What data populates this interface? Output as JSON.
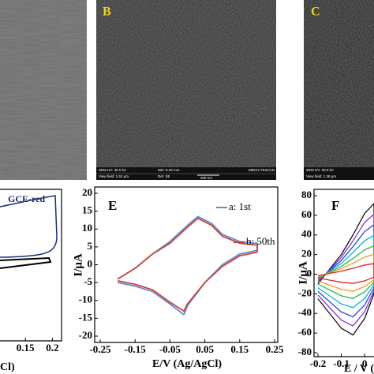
{
  "panels": {
    "b": {
      "label": "B",
      "info": [
        "SEM HV: 30.0 kV",
        "WD: 8.20 mm",
        "MIRA3 TESCAN",
        "View field: 1.52 µm",
        "Det: SE",
        "200 nm"
      ]
    },
    "c": {
      "label": "C",
      "info": [
        "SEM HV: 30.0 kV",
        "View field: 1.38 µm"
      ]
    }
  },
  "chart_data": [
    {
      "type": "line",
      "legend": "GCE-red",
      "xlabel": "Cl)",
      "xlim": [
        0.1,
        0.22
      ],
      "xticks": [
        0.15,
        0.2
      ]
    },
    {
      "type": "line",
      "label": "E",
      "xlabel": "E/V (Ag/AgCl)",
      "ylabel": "I/μA",
      "xlim": [
        -0.25,
        0.25
      ],
      "xticks": [
        -0.25,
        -0.15,
        -0.05,
        0.05,
        0.15,
        0.25
      ],
      "ylim": [
        -20,
        20
      ],
      "yticks": [
        20,
        15,
        10,
        5,
        0,
        -5,
        -10,
        -15,
        -20
      ],
      "x": [
        -0.2,
        -0.15,
        -0.1,
        -0.05,
        0,
        0.03,
        0.07,
        0.1,
        0.15,
        0.2,
        0.2,
        0.15,
        0.1,
        0.05,
        0,
        -0.01,
        -0.05,
        -0.1,
        -0.15,
        -0.2
      ],
      "series": [
        {
          "name": "a: 1st",
          "color": "#5b8fd6",
          "values": [
            -4,
            -1,
            3,
            6.5,
            11,
            13.5,
            11.5,
            8.5,
            6.5,
            6,
            4,
            3,
            0,
            -5,
            -11.5,
            -14,
            -11,
            -7.5,
            -6,
            -5
          ]
        },
        {
          "name": "b: 50th",
          "color": "#d0433a",
          "values": [
            -4,
            -1,
            3,
            6,
            10.5,
            13,
            11,
            8,
            6,
            5.5,
            3.5,
            2.5,
            -0.5,
            -5,
            -11,
            -13,
            -10.5,
            -7,
            -5.5,
            -4.5
          ]
        }
      ]
    },
    {
      "type": "line",
      "label": "F",
      "xlabel": "E / V (",
      "ylabel": "I/μA",
      "xlim": [
        -0.22,
        0.04
      ],
      "xticks": [
        -0.2,
        -0.1,
        0
      ],
      "ylim": [
        -80,
        80
      ],
      "yticks": [
        80,
        60,
        40,
        20,
        0,
        -20,
        -40,
        -60,
        -80
      ],
      "x": [
        -0.2,
        -0.15,
        -0.1,
        -0.05,
        0,
        0.04,
        0.04,
        0,
        -0.05,
        -0.1,
        -0.15,
        -0.2
      ],
      "series": [
        {
          "color": "#111111",
          "values": [
            -10,
            5,
            20,
            40,
            62,
            72,
            -20,
            -45,
            -62,
            -55,
            -40,
            -25
          ]
        },
        {
          "color": "#8a2be2",
          "values": [
            -8.5,
            4.3,
            17,
            34,
            52.7,
            61.2,
            -17,
            -38.3,
            -52.7,
            -46.8,
            -34,
            -21.3
          ]
        },
        {
          "color": "#1f4fe0",
          "values": [
            -7,
            3.5,
            14,
            28,
            43.4,
            50.4,
            -14,
            -31.5,
            -43.4,
            -38.5,
            -28,
            -17.5
          ]
        },
        {
          "color": "#00b5d8",
          "values": [
            -5.5,
            2.8,
            11,
            22,
            34.1,
            39.6,
            -11,
            -24.8,
            -34.1,
            -30.3,
            -22,
            -13.8
          ]
        },
        {
          "color": "#2db34a",
          "values": [
            -4,
            2,
            8,
            16,
            24.8,
            28.8,
            -8,
            -18,
            -24.8,
            -22,
            -16,
            -10
          ]
        },
        {
          "color": "#f29a1f",
          "values": [
            -2.8,
            1.4,
            5.6,
            11.2,
            17.4,
            20.2,
            -5.6,
            -12.6,
            -17.4,
            -15.4,
            -11.2,
            -7
          ]
        },
        {
          "color": "#e02424",
          "values": [
            -1.5,
            0.8,
            3,
            6,
            9.3,
            10.8,
            -3,
            -6.8,
            -9.3,
            -8.3,
            -6,
            -3.8
          ]
        }
      ]
    }
  ]
}
